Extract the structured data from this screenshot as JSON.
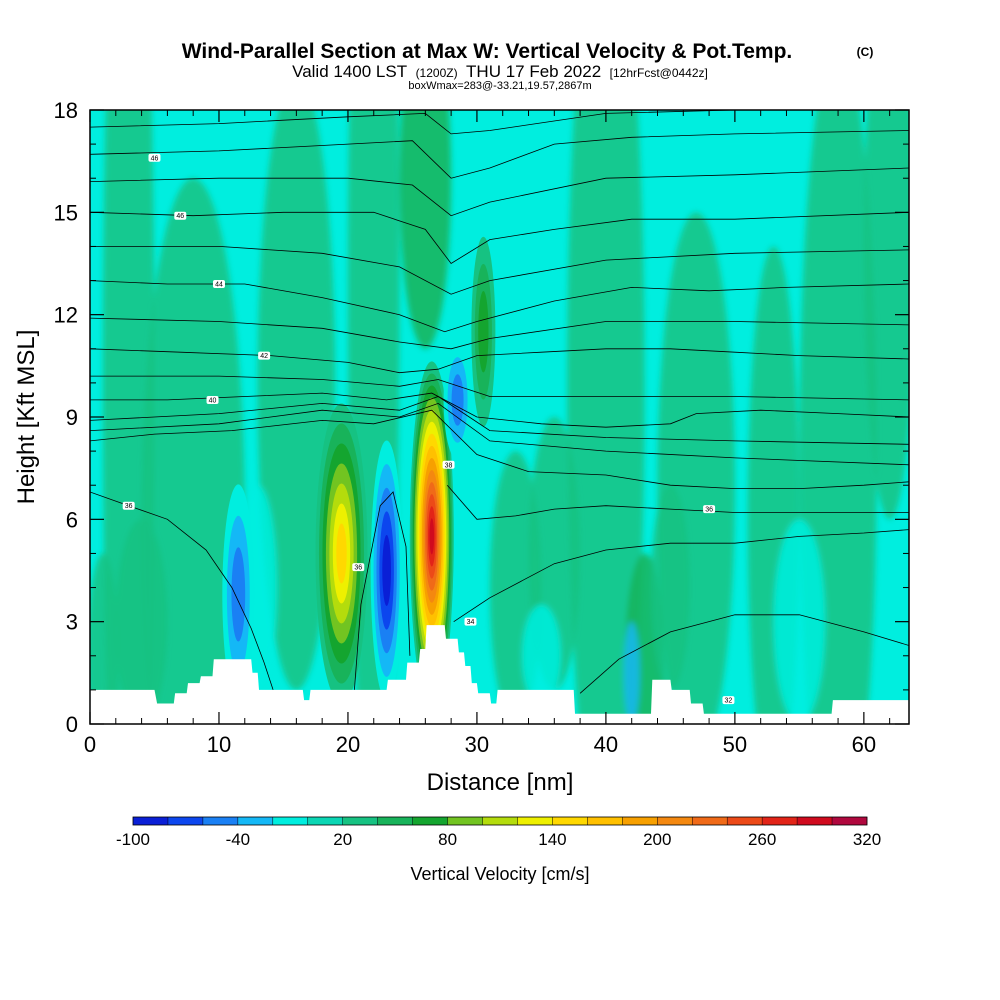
{
  "chart_data": {
    "type": "heatmap",
    "title": "Wind-Parallel Section at Max W: Vertical Velocity & Pot.Temp.",
    "title_mark": "(C)",
    "subtitle_main": "Valid 1400 LST",
    "subtitle_utc": "(1200Z)",
    "subtitle_date": "THU 17 Feb 2022",
    "subtitle_fcst": "[12hrFcst@0442z]",
    "box_info": "boxWmax=283@-33.21,19.57,2867m",
    "xlabel": "Distance [nm]",
    "ylabel": "Height [Kft MSL]",
    "xlim": [
      0,
      63.5
    ],
    "ylim": [
      0,
      18
    ],
    "x_ticks": [
      "0",
      "10",
      "20",
      "30",
      "40",
      "50",
      "60"
    ],
    "x_tick_values": [
      0,
      10,
      20,
      30,
      40,
      50,
      60
    ],
    "y_ticks": [
      "0",
      "3",
      "6",
      "9",
      "12",
      "15",
      "18"
    ],
    "y_tick_values": [
      0,
      3,
      6,
      9,
      12,
      15,
      18
    ],
    "colorbar": {
      "label": "Vertical Velocity [cm/s]",
      "tick_labels": [
        "-100",
        "-40",
        "20",
        "80",
        "140",
        "200",
        "260",
        "320"
      ],
      "levels": [
        -100,
        -80,
        -60,
        -40,
        -20,
        0,
        20,
        40,
        60,
        80,
        100,
        120,
        140,
        160,
        180,
        200,
        220,
        240,
        260,
        280,
        300,
        320
      ],
      "colors": [
        "#0a1fd6",
        "#0c46ee",
        "#1a80f4",
        "#14b8f6",
        "#00eedf",
        "#0bd6b4",
        "#16c282",
        "#18b35a",
        "#14a52f",
        "#72c421",
        "#b4dc0c",
        "#eef000",
        "#ffd800",
        "#ffc000",
        "#f7a000",
        "#f48810",
        "#f06a18",
        "#ec4a18",
        "#e22418",
        "#d00a1e",
        "#b0083e"
      ]
    },
    "vertical_velocity_features": [
      {
        "x": 19.5,
        "y": 5.0,
        "peak_cms": 145,
        "sense": "updraft"
      },
      {
        "x": 26.5,
        "y": 5.5,
        "peak_cms": 283,
        "sense": "updraft"
      },
      {
        "x": 23.0,
        "y": 4.5,
        "peak_cms": -100,
        "sense": "downdraft"
      },
      {
        "x": 11.5,
        "y": 3.8,
        "peak_cms": -60,
        "sense": "downdraft"
      },
      {
        "x": 28.5,
        "y": 9.5,
        "peak_cms": -70,
        "sense": "downdraft"
      },
      {
        "x": 30.5,
        "y": 11.5,
        "peak_cms": 70,
        "sense": "updraft"
      }
    ],
    "theta_contours": [
      {
        "label": "32",
        "label_x": 49.5,
        "label_y": 0.7,
        "points": [
          [
            38,
            0.9
          ],
          [
            41,
            1.9
          ],
          [
            45,
            2.7
          ],
          [
            50,
            3.2
          ],
          [
            55,
            3.2
          ],
          [
            60,
            2.7
          ],
          [
            63.5,
            2.3
          ]
        ]
      },
      {
        "label": "34",
        "label_x": 29.5,
        "label_y": 3.0,
        "points": [
          [
            28.2,
            3.0
          ],
          [
            31,
            3.7
          ],
          [
            33.5,
            4.2
          ],
          [
            36,
            4.7
          ],
          [
            40,
            5.1
          ],
          [
            45,
            5.3
          ],
          [
            50,
            5.3
          ],
          [
            55,
            5.5
          ],
          [
            60,
            5.6
          ],
          [
            63.5,
            5.7
          ]
        ]
      },
      {
        "label": "36",
        "label_x": 20.8,
        "label_y": 4.6,
        "points": [
          [
            20.5,
            1.0
          ],
          [
            21,
            3.5
          ],
          [
            22.5,
            6.4
          ],
          [
            23.5,
            6.8
          ],
          [
            24.5,
            5.2
          ],
          [
            24.8,
            2.0
          ]
        ]
      },
      {
        "label": "36",
        "label_x": 48.0,
        "label_y": 6.3,
        "points": [
          [
            27.7,
            7.0
          ],
          [
            30,
            6.0
          ],
          [
            33,
            6.1
          ],
          [
            36,
            6.3
          ],
          [
            40,
            6.4
          ],
          [
            45,
            6.3
          ],
          [
            50,
            6.2
          ],
          [
            55,
            6.2
          ],
          [
            60,
            6.2
          ],
          [
            63.5,
            6.2
          ]
        ]
      },
      {
        "label": "36",
        "label_x": 3.0,
        "label_y": 6.4,
        "points": [
          [
            0,
            6.8
          ],
          [
            3,
            6.4
          ],
          [
            6,
            6.0
          ],
          [
            9,
            5.1
          ],
          [
            11,
            4.0
          ],
          [
            12.5,
            2.8
          ],
          [
            13.5,
            1.8
          ],
          [
            14.2,
            1.0
          ]
        ]
      },
      {
        "label": "38",
        "label_x": 27.8,
        "label_y": 7.6,
        "points": [
          [
            0,
            8.3
          ],
          [
            5,
            8.5
          ],
          [
            11,
            8.6
          ],
          [
            18,
            8.9
          ],
          [
            22,
            8.8
          ],
          [
            26.5,
            9.2
          ],
          [
            30,
            7.9
          ],
          [
            34,
            7.4
          ],
          [
            40,
            7.3
          ],
          [
            45,
            7.0
          ],
          [
            50,
            6.9
          ],
          [
            55,
            6.9
          ],
          [
            60,
            7.0
          ],
          [
            63.5,
            7.1
          ]
        ]
      },
      {
        "label": "40",
        "label_x": 9.5,
        "label_y": 9.5,
        "points": [
          [
            0,
            9.5
          ],
          [
            6,
            9.5
          ],
          [
            12,
            9.6
          ],
          [
            18,
            9.7
          ],
          [
            23,
            9.5
          ],
          [
            26.5,
            9.7
          ],
          [
            30,
            9.0
          ],
          [
            35,
            8.8
          ],
          [
            40,
            8.7
          ],
          [
            45,
            8.8
          ],
          [
            47,
            9.1
          ],
          [
            52,
            9.2
          ],
          [
            58,
            9.1
          ],
          [
            63.5,
            9.0
          ]
        ]
      },
      {
        "label": "42",
        "label_x": 13.5,
        "label_y": 10.8,
        "points": [
          [
            0,
            11.0
          ],
          [
            7,
            10.9
          ],
          [
            14,
            10.8
          ],
          [
            20,
            10.6
          ],
          [
            24,
            10.3
          ],
          [
            27,
            10.4
          ],
          [
            30,
            10.8
          ],
          [
            35,
            10.9
          ],
          [
            40,
            11.0
          ],
          [
            45,
            11.0
          ],
          [
            50,
            10.9
          ],
          [
            55,
            10.8
          ],
          [
            63.5,
            10.7
          ]
        ]
      },
      {
        "label": "44",
        "label_x": 10.0,
        "label_y": 12.9,
        "points": [
          [
            0,
            13.0
          ],
          [
            6,
            12.9
          ],
          [
            12,
            12.9
          ],
          [
            18,
            12.5
          ],
          [
            24,
            12.0
          ],
          [
            27.5,
            11.5
          ],
          [
            30,
            11.8
          ],
          [
            36,
            12.4
          ],
          [
            42,
            12.8
          ],
          [
            48,
            12.7
          ],
          [
            54,
            12.8
          ],
          [
            63.5,
            12.9
          ]
        ]
      },
      {
        "label": "46",
        "label_x": 7.0,
        "label_y": 14.9,
        "points": [
          [
            0,
            15.0
          ],
          [
            8,
            14.9
          ],
          [
            15,
            15.0
          ],
          [
            22,
            15.0
          ],
          [
            26,
            14.5
          ],
          [
            28,
            13.5
          ],
          [
            31,
            14.2
          ],
          [
            36,
            14.5
          ],
          [
            42,
            14.8
          ],
          [
            50,
            14.8
          ],
          [
            63.5,
            15.0
          ]
        ]
      },
      {
        "label": "46",
        "label_x": 5.0,
        "label_y": 16.6,
        "points": [
          [
            0,
            16.7
          ],
          [
            10,
            16.8
          ],
          [
            20,
            17.0
          ],
          [
            25,
            17.1
          ],
          [
            28,
            16.0
          ],
          [
            31,
            16.3
          ],
          [
            36,
            17.0
          ],
          [
            42,
            17.2
          ],
          [
            50,
            17.3
          ],
          [
            63.5,
            17.4
          ]
        ]
      }
    ],
    "extra_theta_lines": [
      [
        [
          0,
          8.6
        ],
        [
          10,
          8.8
        ],
        [
          18,
          9.2
        ],
        [
          24,
          9.0
        ],
        [
          27,
          9.4
        ],
        [
          31,
          8.3
        ],
        [
          40,
          8.0
        ],
        [
          50,
          7.8
        ],
        [
          63.5,
          7.6
        ]
      ],
      [
        [
          0,
          8.9
        ],
        [
          10,
          9.1
        ],
        [
          18,
          9.4
        ],
        [
          24,
          9.2
        ],
        [
          27,
          9.6
        ],
        [
          31,
          8.6
        ],
        [
          40,
          8.4
        ],
        [
          50,
          8.3
        ],
        [
          63.5,
          8.2
        ]
      ],
      [
        [
          0,
          10.2
        ],
        [
          10,
          10.2
        ],
        [
          18,
          10.1
        ],
        [
          24,
          9.9
        ],
        [
          27,
          10.1
        ],
        [
          31,
          9.6
        ],
        [
          40,
          9.6
        ],
        [
          50,
          9.6
        ],
        [
          63.5,
          9.5
        ]
      ],
      [
        [
          0,
          11.9
        ],
        [
          10,
          11.8
        ],
        [
          18,
          11.6
        ],
        [
          24,
          11.2
        ],
        [
          28,
          11.0
        ],
        [
          31,
          11.3
        ],
        [
          40,
          11.8
        ],
        [
          50,
          11.8
        ],
        [
          63.5,
          11.7
        ]
      ],
      [
        [
          0,
          14.0
        ],
        [
          10,
          14.0
        ],
        [
          18,
          13.8
        ],
        [
          24,
          13.4
        ],
        [
          28,
          12.6
        ],
        [
          31,
          13.0
        ],
        [
          40,
          13.6
        ],
        [
          50,
          13.8
        ],
        [
          63.5,
          13.9
        ]
      ],
      [
        [
          0,
          15.9
        ],
        [
          10,
          16.0
        ],
        [
          20,
          16.0
        ],
        [
          25,
          15.8
        ],
        [
          28,
          14.9
        ],
        [
          31,
          15.3
        ],
        [
          40,
          16.0
        ],
        [
          50,
          16.1
        ],
        [
          63.5,
          16.3
        ]
      ],
      [
        [
          0,
          17.5
        ],
        [
          10,
          17.6
        ],
        [
          20,
          17.8
        ],
        [
          26,
          17.9
        ],
        [
          28,
          17.3
        ],
        [
          31,
          17.4
        ],
        [
          40,
          17.9
        ],
        [
          50,
          18.0
        ],
        [
          63.5,
          18.0
        ]
      ]
    ],
    "terrain_kft": [
      [
        0,
        1.0
      ],
      [
        5,
        1.0
      ],
      [
        5.2,
        0.6
      ],
      [
        6.5,
        0.6
      ],
      [
        6.6,
        0.9
      ],
      [
        7.5,
        0.9
      ],
      [
        7.6,
        1.2
      ],
      [
        8.5,
        1.2
      ],
      [
        8.6,
        1.4
      ],
      [
        9.5,
        1.4
      ],
      [
        9.6,
        1.9
      ],
      [
        12.5,
        1.9
      ],
      [
        12.6,
        1.5
      ],
      [
        13.0,
        1.5
      ],
      [
        13.1,
        1.0
      ],
      [
        16.5,
        1.0
      ],
      [
        16.6,
        0.7
      ],
      [
        17.0,
        0.7
      ],
      [
        17.1,
        1.0
      ],
      [
        23.0,
        1.0
      ],
      [
        23.1,
        1.3
      ],
      [
        24.5,
        1.3
      ],
      [
        24.6,
        1.8
      ],
      [
        25.5,
        1.8
      ],
      [
        25.6,
        2.2
      ],
      [
        26.0,
        2.2
      ],
      [
        26.1,
        2.9
      ],
      [
        27.5,
        2.9
      ],
      [
        27.6,
        2.5
      ],
      [
        28.5,
        2.5
      ],
      [
        28.6,
        2.1
      ],
      [
        29.0,
        2.1
      ],
      [
        29.1,
        1.7
      ],
      [
        29.5,
        1.7
      ],
      [
        29.6,
        1.2
      ],
      [
        30.0,
        1.2
      ],
      [
        30.1,
        0.9
      ],
      [
        31.0,
        0.9
      ],
      [
        31.1,
        0.6
      ],
      [
        31.5,
        0.6
      ],
      [
        31.6,
        1.0
      ],
      [
        37.5,
        1.0
      ],
      [
        37.6,
        0.3
      ],
      [
        43.5,
        0.3
      ],
      [
        43.6,
        1.3
      ],
      [
        45.0,
        1.3
      ],
      [
        45.1,
        1.0
      ],
      [
        46.5,
        1.0
      ],
      [
        46.6,
        0.6
      ],
      [
        47.5,
        0.6
      ],
      [
        47.6,
        0.3
      ],
      [
        57.5,
        0.3
      ],
      [
        57.6,
        0.7
      ],
      [
        63.5,
        0.7
      ]
    ]
  }
}
